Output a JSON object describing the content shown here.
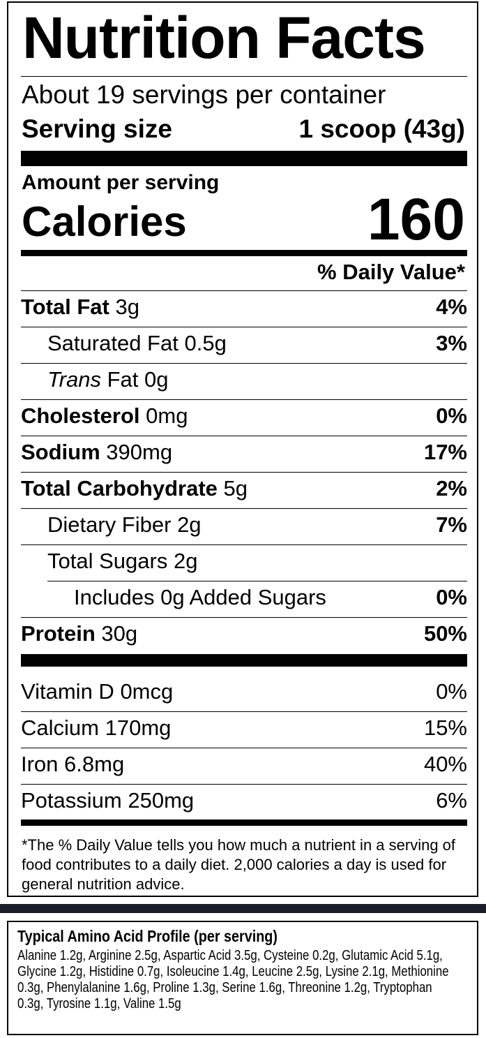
{
  "label": {
    "title": "Nutrition Facts",
    "servings_per_container": "About 19 servings per container",
    "serving_size_label": "Serving size",
    "serving_size_value": "1 scoop (43g)",
    "amount_per_serving": "Amount per serving",
    "calories_label": "Calories",
    "calories_value": "160",
    "daily_value_header": "% Daily Value*"
  },
  "nutrients": [
    {
      "name": "Total Fat",
      "amount": "3g",
      "dv": "4%",
      "bold": true,
      "indent": 0
    },
    {
      "name": "Saturated Fat",
      "amount": "0.5g",
      "dv": "3%",
      "bold": false,
      "indent": 1
    },
    {
      "name": "Trans",
      "name_rest": "Fat",
      "amount": "0g",
      "dv": "",
      "bold": false,
      "indent": 1,
      "italic_first": true
    },
    {
      "name": "Cholesterol",
      "amount": "0mg",
      "dv": "0%",
      "bold": true,
      "indent": 0
    },
    {
      "name": "Sodium",
      "amount": "390mg",
      "dv": "17%",
      "bold": true,
      "indent": 0
    },
    {
      "name": "Total Carbohydrate",
      "amount": "5g",
      "dv": "2%",
      "bold": true,
      "indent": 0
    },
    {
      "name": "Dietary Fiber",
      "amount": "2g",
      "dv": "7%",
      "bold": false,
      "indent": 1
    },
    {
      "name": "Total Sugars",
      "amount": "2g",
      "dv": "",
      "bold": false,
      "indent": 1
    },
    {
      "name": "Includes 0g Added Sugars",
      "amount": "",
      "dv": "0%",
      "bold": false,
      "indent": 2
    },
    {
      "name": "Protein",
      "amount": "30g",
      "dv": "50%",
      "bold": true,
      "indent": 0
    }
  ],
  "vitamins": [
    {
      "name": "Vitamin D",
      "amount": "0mcg",
      "dv": "0%"
    },
    {
      "name": "Calcium",
      "amount": "170mg",
      "dv": "15%"
    },
    {
      "name": "Iron",
      "amount": "6.8mg",
      "dv": "40%"
    },
    {
      "name": "Potassium",
      "amount": "250mg",
      "dv": "6%"
    }
  ],
  "footnote": "*The % Daily Value tells you how much a nutrient in a serving of food contributes to a daily diet. 2,000 calories a day is used for general nutrition advice.",
  "amino": {
    "title": "Typical Amino Acid Profile (per serving)",
    "text": "Alanine 1.2g, Arginine 2.5g, Aspartic Acid 3.5g, Cysteine 0.2g, Glutamic Acid 5.1g, Glycine 1.2g, Histidine 0.7g, Isoleucine 1.4g,  Leucine 2.5g, Lysine 2.1g, Methionine 0.3g, Phenylalanine 1.6g,  Proline 1.3g, Serine 1.6g, Threonine 1.2g, Tryptophan 0.3g, Tyrosine 1.1g, Valine 1.5g"
  },
  "colors": {
    "ink": "#000000",
    "band": "#1b1c29",
    "background": "#ffffff"
  }
}
